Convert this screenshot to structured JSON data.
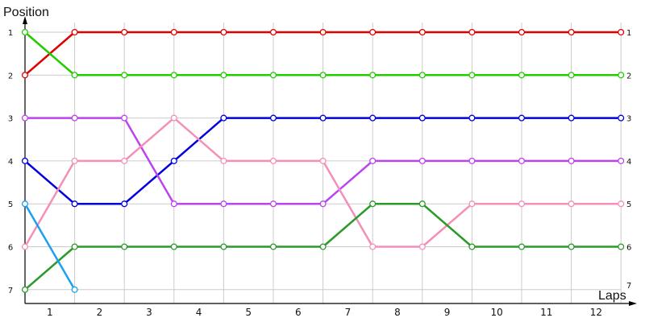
{
  "chart_data": {
    "type": "line",
    "title": "",
    "ylabel": "Position",
    "xlabel": "Laps",
    "x_positions": [
      0,
      1,
      2,
      3,
      4,
      5,
      6,
      7,
      8,
      9,
      10,
      11,
      12
    ],
    "x_tick_labels": [
      "1",
      "2",
      "3",
      "4",
      "5",
      "6",
      "7",
      "8",
      "9",
      "10",
      "11",
      "12"
    ],
    "y_tick_labels": [
      "1",
      "2",
      "3",
      "4",
      "5",
      "6",
      "7"
    ],
    "ylim": [
      1,
      7
    ],
    "y_inverted": true,
    "grid": true,
    "series": [
      {
        "color": "#e00000",
        "values": [
          2,
          1,
          1,
          1,
          1,
          1,
          1,
          1,
          1,
          1,
          1,
          1,
          1
        ]
      },
      {
        "color": "#22cc00",
        "values": [
          1,
          2,
          2,
          2,
          2,
          2,
          2,
          2,
          2,
          2,
          2,
          2,
          2
        ]
      },
      {
        "color": "#0000dd",
        "values": [
          4,
          5,
          5,
          4,
          3,
          3,
          3,
          3,
          3,
          3,
          3,
          3,
          3
        ]
      },
      {
        "color": "#bb44ee",
        "values": [
          3,
          3,
          3,
          5,
          5,
          5,
          5,
          4,
          4,
          4,
          4,
          4,
          4
        ]
      },
      {
        "color": "#f48fb8",
        "values": [
          6,
          4,
          4,
          3,
          4,
          4,
          4,
          6,
          6,
          5,
          5,
          5,
          5
        ]
      },
      {
        "color": "#2a9a2a",
        "values": [
          7,
          6,
          6,
          6,
          6,
          6,
          6,
          5,
          5,
          6,
          6,
          6,
          6
        ]
      },
      {
        "color": "#1aa0f0",
        "values": [
          5,
          7
        ]
      }
    ],
    "end_labels": [
      "1",
      "2",
      "3",
      "4",
      "5",
      "6",
      "7"
    ]
  }
}
